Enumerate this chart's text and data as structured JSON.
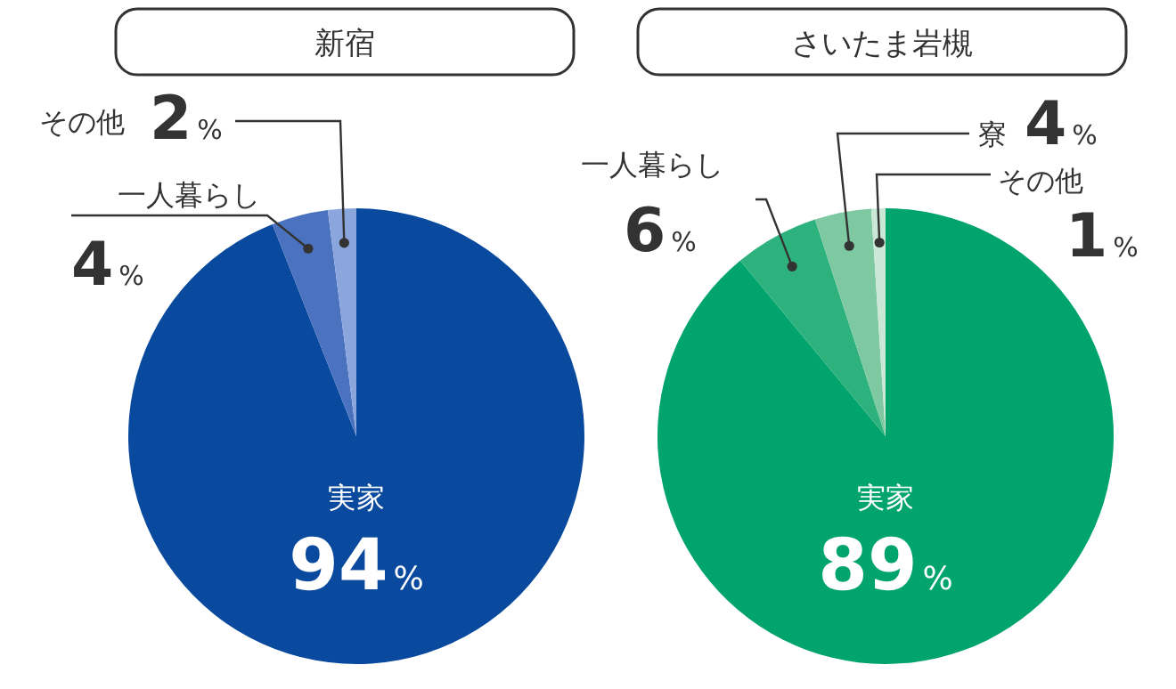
{
  "chart_data": [
    {
      "type": "pie",
      "title": "新宿",
      "categories": [
        "実家",
        "一人暮らし",
        "その他"
      ],
      "values": [
        94,
        4,
        2
      ],
      "colors": [
        "#0a4a9e",
        "#4a72bf",
        "#8aa6dc"
      ],
      "value_labels": [
        "94%",
        "4%",
        "2%"
      ]
    },
    {
      "type": "pie",
      "title": "さいたま岩槻",
      "categories": [
        "実家",
        "一人暮らし",
        "寮",
        "その他"
      ],
      "values": [
        89,
        6,
        4,
        1
      ],
      "colors": [
        "#00a46c",
        "#2db27e",
        "#7fc9a2",
        "#cbe8d6"
      ],
      "value_labels": [
        "89%",
        "6%",
        "4%",
        "1%"
      ]
    }
  ]
}
